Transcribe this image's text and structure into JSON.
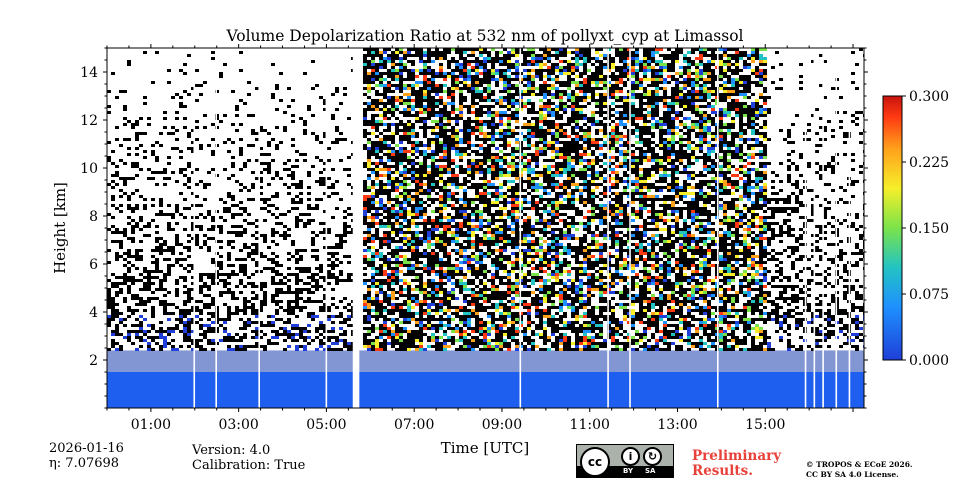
{
  "chart_data": {
    "type": "heatmap",
    "title": "Volume Depolarization Ratio at 532 nm of pollyxt_cyp at Limassol",
    "xlabel": "Time [UTC]",
    "ylabel": "Height [km]",
    "xlim": [
      0,
      17.25
    ],
    "ylim": [
      0,
      15
    ],
    "x_ticks": [
      "01:00",
      "03:00",
      "05:00",
      "07:00",
      "09:00",
      "11:00",
      "13:00",
      "15:00"
    ],
    "x_tick_hours": [
      1,
      3,
      5,
      7,
      9,
      11,
      13,
      15
    ],
    "y_ticks": [
      2,
      4,
      6,
      8,
      10,
      12,
      14
    ],
    "colorbar": {
      "ticks": [
        "0.000",
        "0.075",
        "0.150",
        "0.225",
        "0.300"
      ],
      "min": 0.0,
      "max": 0.3,
      "colors": [
        "#1f3fd8",
        "#1e90ff",
        "#22c3c3",
        "#7be34a",
        "#f6ef2a",
        "#ffa11b",
        "#ff3a12",
        "#c8140e"
      ]
    },
    "features": {
      "boundary_layer_top_km": 1.5,
      "noisy_period_hours": [
        5.75,
        15.0
      ],
      "no_data_gap_hours": [
        5.6,
        5.75
      ]
    }
  },
  "footer": {
    "date": "2026-01-16",
    "eta": "η: 7.07698",
    "version": "Version: 4.0",
    "calibration": "Calibration: True",
    "preliminary_line1": "Preliminary",
    "preliminary_line2": "Results.",
    "copyright_line1": "© TROPOS & ECoE 2026.",
    "copyright_line2": "CC BY SA 4.0 License.",
    "license_cc": "cc",
    "license_by": "BY",
    "license_sa": "SA"
  }
}
